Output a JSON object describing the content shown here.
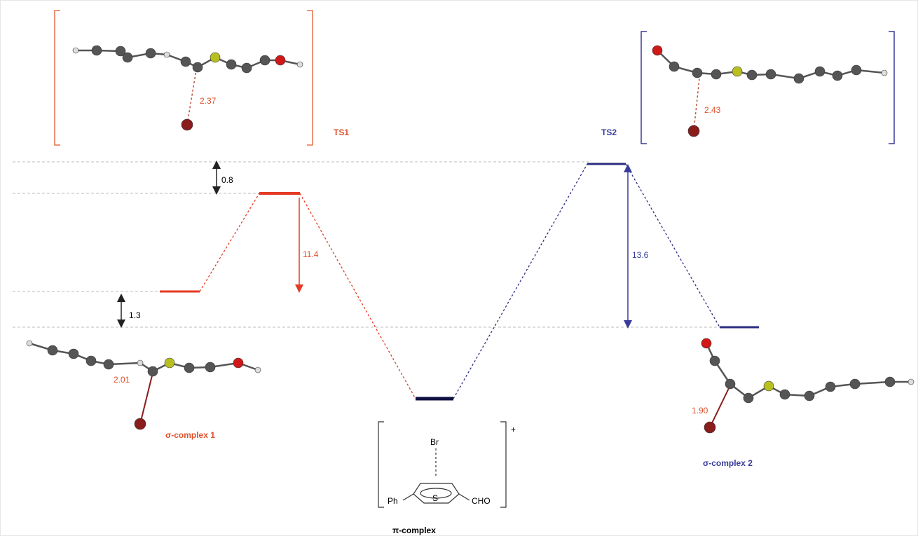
{
  "transition_states": [
    {
      "label": "TS1",
      "distance": "2.37"
    },
    {
      "label": "TS2",
      "distance": "2.43"
    }
  ],
  "intermediates": [
    {
      "label": "σ-complex 1",
      "distance": "2.01"
    },
    {
      "label": "σ-complex 2",
      "distance": "1.90"
    }
  ],
  "pi_complex": {
    "label": "π-complex",
    "br": "Br",
    "ph": "Ph",
    "s": "S",
    "cho": "CHO",
    "charge": "+"
  },
  "energy_gaps": [
    "0.8",
    "11.4",
    "1.3",
    "13.6"
  ]
}
